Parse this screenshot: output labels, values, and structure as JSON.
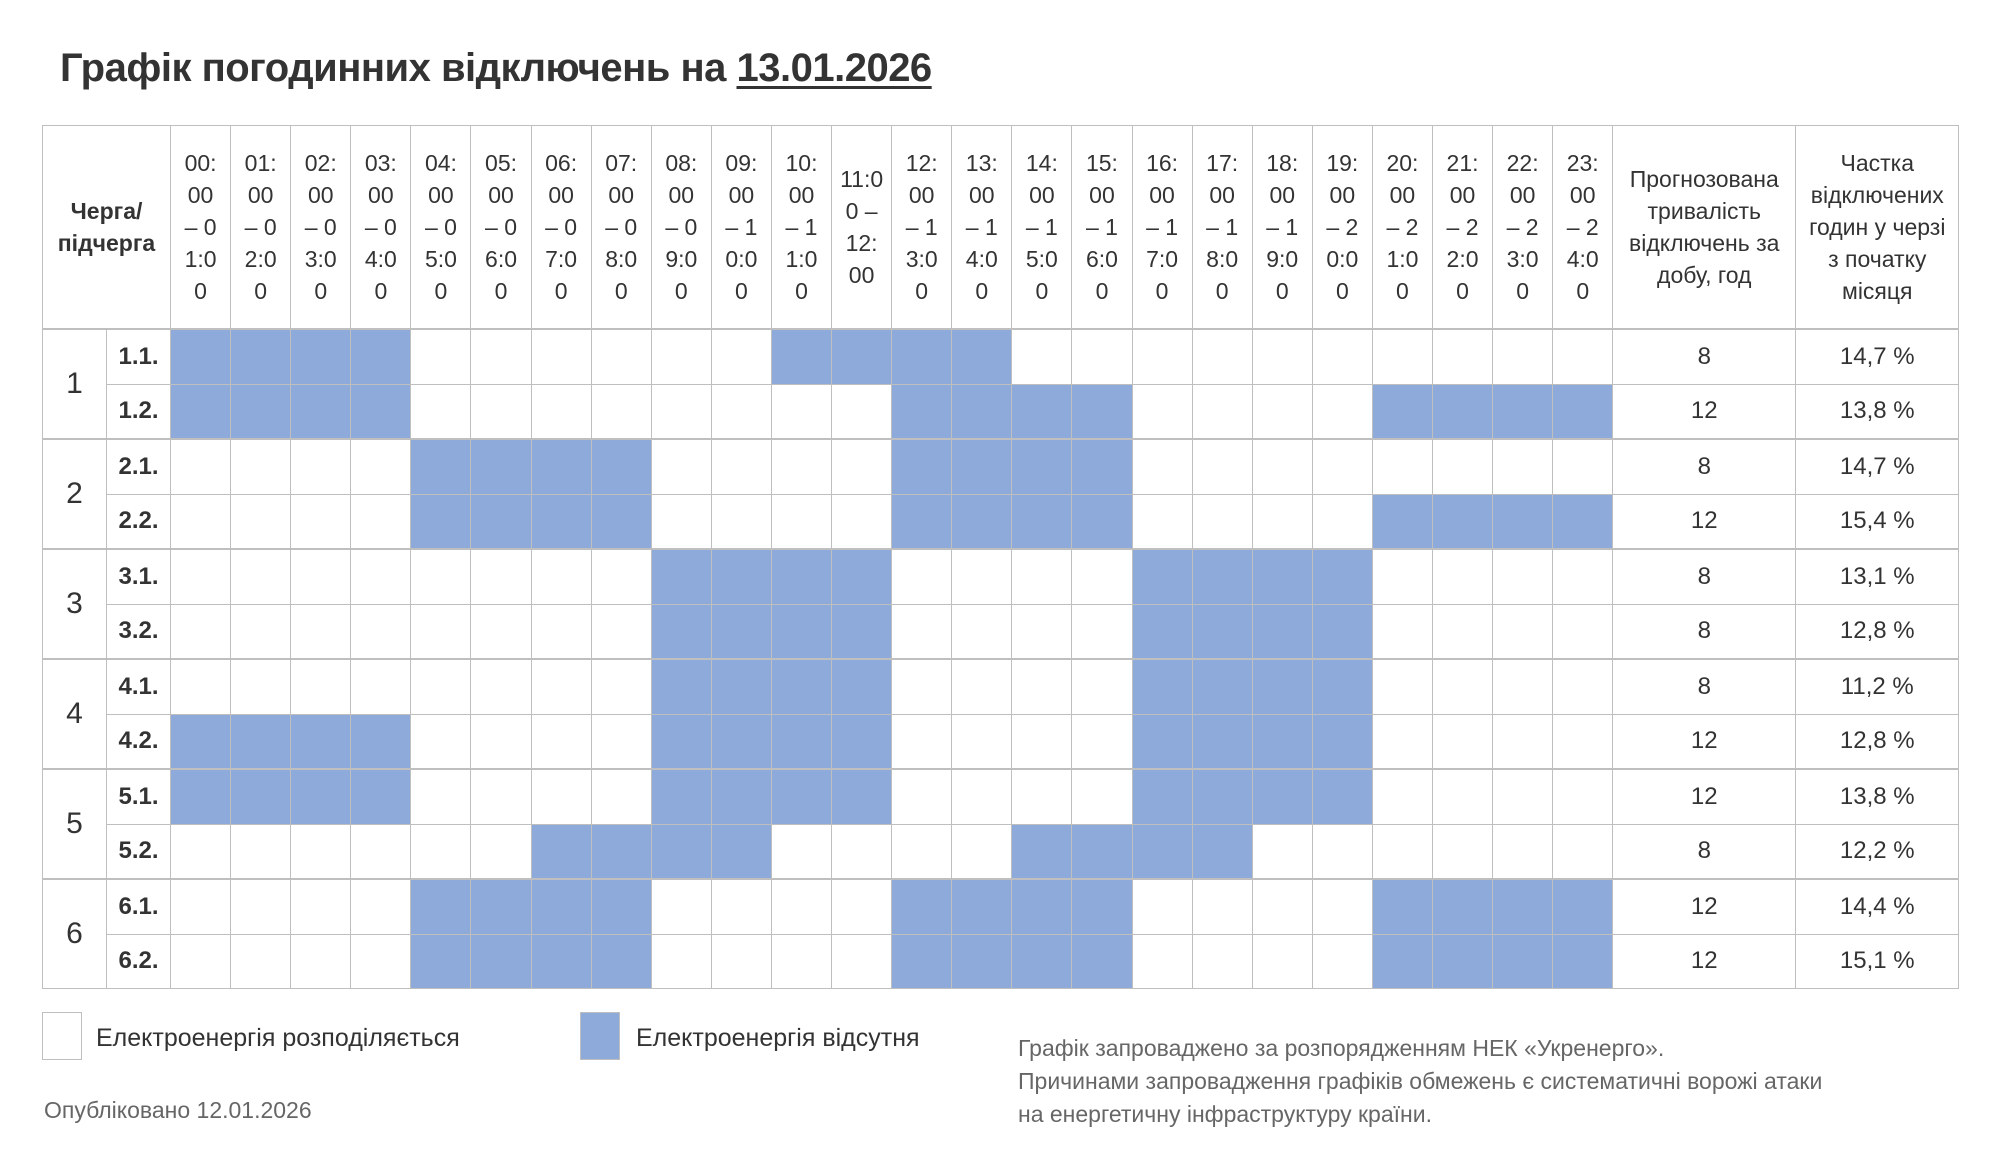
{
  "title": {
    "prefix": "Графік погодинних відключень на",
    "date": "13.01.2026"
  },
  "colors": {
    "power_on": "#ffffff",
    "power_off": "#8eaadb"
  },
  "table": {
    "queue_header": "Черга/ підчерга",
    "hours": [
      "00:00 – 01:00",
      "01:00 – 02:00",
      "02:00 – 03:00",
      "03:00 – 04:00",
      "04:00 – 05:00",
      "05:00 – 06:00",
      "06:00 – 07:00",
      "07:00 – 08:00",
      "08:00 – 09:00",
      "09:00 – 10:00",
      "10:00 – 11:00",
      "11:00 – 12:00",
      "12:00 – 13:00",
      "13:00 – 14:00",
      "14:00 – 15:00",
      "15:00 – 16:00",
      "16:00 – 17:00",
      "17:00 – 18:00",
      "18:00 – 19:00",
      "19:00 – 20:00",
      "20:00 – 21:00",
      "21:00 – 22:00",
      "22:00 – 23:00",
      "23:00 – 24:00"
    ],
    "duration_header": "Прогнозована тривалість відключень за добу, год",
    "share_header": "Частка відключених годин у черзі з початку місяця",
    "queues": [
      {
        "queue": "1",
        "subqueues": [
          {
            "label": "1.1.",
            "off_hours": [
              0,
              1,
              2,
              3,
              10,
              11,
              12,
              13
            ],
            "duration": "8",
            "share": "14,7 %"
          },
          {
            "label": "1.2.",
            "off_hours": [
              0,
              1,
              2,
              3,
              12,
              13,
              14,
              15,
              20,
              21,
              22,
              23
            ],
            "duration": "12",
            "share": "13,8 %"
          }
        ]
      },
      {
        "queue": "2",
        "subqueues": [
          {
            "label": "2.1.",
            "off_hours": [
              4,
              5,
              6,
              7,
              12,
              13,
              14,
              15
            ],
            "duration": "8",
            "share": "14,7 %"
          },
          {
            "label": "2.2.",
            "off_hours": [
              4,
              5,
              6,
              7,
              12,
              13,
              14,
              15,
              20,
              21,
              22,
              23
            ],
            "duration": "12",
            "share": "15,4 %"
          }
        ]
      },
      {
        "queue": "3",
        "subqueues": [
          {
            "label": "3.1.",
            "off_hours": [
              8,
              9,
              10,
              11,
              16,
              17,
              18,
              19
            ],
            "duration": "8",
            "share": "13,1 %"
          },
          {
            "label": "3.2.",
            "off_hours": [
              8,
              9,
              10,
              11,
              16,
              17,
              18,
              19
            ],
            "duration": "8",
            "share": "12,8 %"
          }
        ]
      },
      {
        "queue": "4",
        "subqueues": [
          {
            "label": "4.1.",
            "off_hours": [
              8,
              9,
              10,
              11,
              16,
              17,
              18,
              19
            ],
            "duration": "8",
            "share": "11,2 %"
          },
          {
            "label": "4.2.",
            "off_hours": [
              0,
              1,
              2,
              3,
              8,
              9,
              10,
              11,
              16,
              17,
              18,
              19
            ],
            "duration": "12",
            "share": "12,8 %"
          }
        ]
      },
      {
        "queue": "5",
        "subqueues": [
          {
            "label": "5.1.",
            "off_hours": [
              0,
              1,
              2,
              3,
              8,
              9,
              10,
              11,
              16,
              17,
              18,
              19
            ],
            "duration": "12",
            "share": "13,8 %"
          },
          {
            "label": "5.2.",
            "off_hours": [
              6,
              7,
              8,
              9,
              14,
              15,
              16,
              17
            ],
            "duration": "8",
            "share": "12,2 %"
          }
        ]
      },
      {
        "queue": "6",
        "subqueues": [
          {
            "label": "6.1.",
            "off_hours": [
              4,
              5,
              6,
              7,
              12,
              13,
              14,
              15,
              20,
              21,
              22,
              23
            ],
            "duration": "12",
            "share": "14,4 %"
          },
          {
            "label": "6.2.",
            "off_hours": [
              4,
              5,
              6,
              7,
              12,
              13,
              14,
              15,
              20,
              21,
              22,
              23
            ],
            "duration": "12",
            "share": "15,1 %"
          }
        ]
      }
    ]
  },
  "legend": {
    "on": "Електроенергія розподіляється",
    "off": "Електроенергія відсутня"
  },
  "published": "Опубліковано 12.01.2026",
  "note": [
    "Графік запроваджено за розпорядженням НЕК «Укренерго».",
    "Причинами запровадження графіків обмежень є систематичні ворожі атаки",
    "на енергетичну інфраструктуру країни."
  ]
}
